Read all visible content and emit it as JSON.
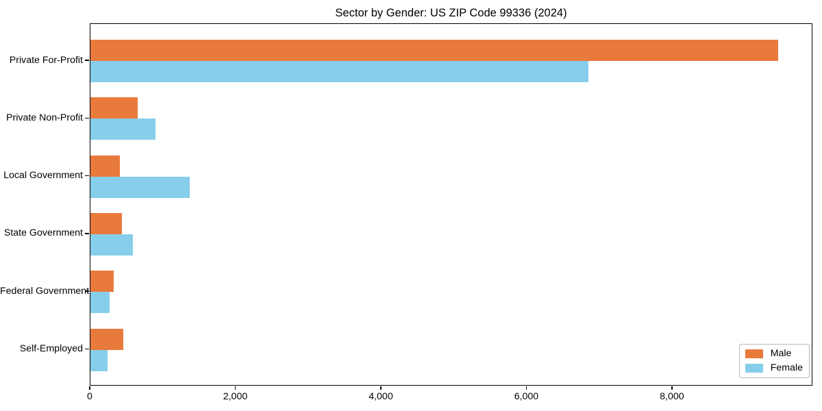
{
  "chart_data": {
    "type": "bar",
    "orientation": "horizontal",
    "title": "Sector by Gender: US ZIP Code 99336 (2024)",
    "categories": [
      "Private For-Profit",
      "Private Non-Profit",
      "Local Government",
      "State Government",
      "Federal Government",
      "Self-Employed"
    ],
    "series": [
      {
        "name": "Male",
        "color": "#E87A3C",
        "values": [
          9450,
          650,
          400,
          435,
          320,
          450
        ]
      },
      {
        "name": "Female",
        "color": "#87CEEB",
        "values": [
          6840,
          890,
          1360,
          580,
          260,
          235
        ]
      }
    ],
    "xlabel": "",
    "ylabel": "",
    "xlim": [
      0,
      9930
    ],
    "xticks": [
      0,
      2000,
      4000,
      6000,
      8000
    ],
    "xtick_labels": [
      "0",
      "2,000",
      "4,000",
      "6,000",
      "8,000"
    ],
    "grid": false,
    "legend": {
      "position": "lower-right",
      "entries": [
        "Male",
        "Female"
      ]
    }
  }
}
